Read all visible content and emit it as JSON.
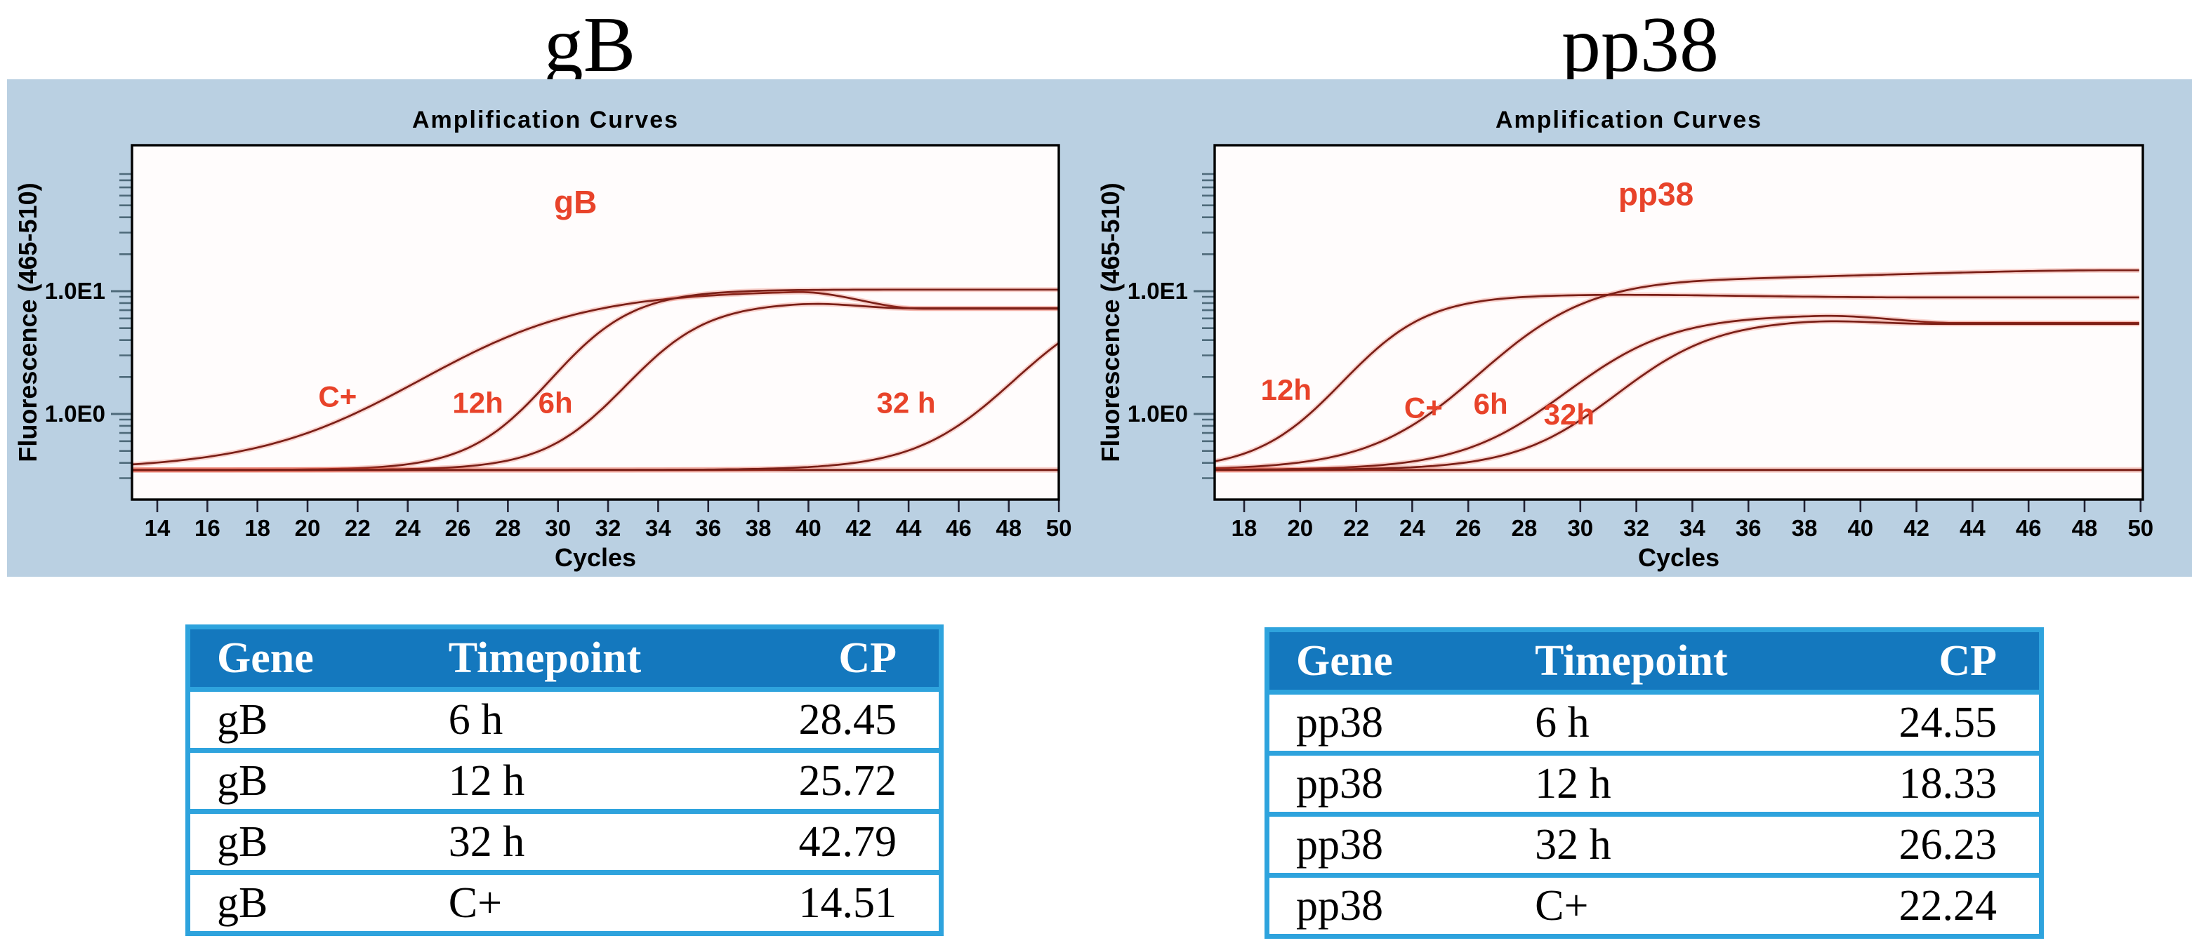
{
  "figure_titles": [
    {
      "text": "gB"
    },
    {
      "text": "pp38"
    }
  ],
  "colors": {
    "panel_bg": "#bad0e2",
    "plot_bg": "#fffcfc",
    "curve": "#7a1f17",
    "curve_glow": "rgba(228,62,40,0.22)",
    "red_label": "#e8432a",
    "axis": "#000000",
    "tick": "#4e6a7a",
    "table_header_bg": "#1478be",
    "table_border": "#2ea3dd",
    "table_header_text": "#ffffff"
  },
  "chart_data": [
    {
      "name": "gB",
      "type": "line",
      "title": "Amplification Curves",
      "xlabel": "Cycles",
      "ylabel": "Fluorescence (465-510)",
      "y_scale": "log",
      "x_ticks": [
        14,
        16,
        18,
        20,
        22,
        24,
        26,
        28,
        30,
        32,
        34,
        36,
        38,
        40,
        42,
        44,
        46,
        48,
        50
      ],
      "y_major_ticks": [
        {
          "label": "1.0E1",
          "value": 10
        },
        {
          "label": "1.0E0",
          "value": 1
        }
      ],
      "y_minor_ticks": [
        0.3,
        0.4,
        0.5,
        0.6,
        0.7,
        0.8,
        0.9,
        2,
        3,
        4,
        5,
        6,
        7,
        8,
        9,
        20,
        30,
        40,
        50,
        60,
        70,
        80,
        90
      ],
      "x_range": [
        12.99,
        50.0
      ],
      "y_range": [
        0.2,
        155
      ],
      "baseline_value": 0.35,
      "curves": [
        {
          "label": "C+",
          "cp": 14.51,
          "mid": 24.5,
          "k": 0.3,
          "plateau": 10.2,
          "settle": 7.2,
          "settle_start": 39.5,
          "settle_end": 44.5
        },
        {
          "label": "12h",
          "cp": 25.72,
          "mid": 29.7,
          "k": 0.6,
          "plateau": 10.3,
          "settle": null,
          "settle_start": null,
          "settle_end": null
        },
        {
          "label": "6h",
          "cp": 28.45,
          "mid": 32.7,
          "k": 0.6,
          "plateau": 8.2,
          "settle": 7.25,
          "settle_start": 39.5,
          "settle_end": 44.0
        },
        {
          "label": "32 h",
          "cp": 42.79,
          "mid": 48.2,
          "k": 0.5,
          "plateau": 10.0,
          "settle": null,
          "settle_start": null,
          "settle_end": null
        }
      ],
      "annotations": [
        {
          "text": "gB",
          "cycle": 30.7,
          "value": 43,
          "size": "large"
        },
        {
          "text": "C+",
          "cycle": 21.2,
          "value": 1.15,
          "size": "small"
        },
        {
          "text": "12h",
          "cycle": 26.8,
          "value": 1.02,
          "size": "small"
        },
        {
          "text": "6h",
          "cycle": 29.9,
          "value": 1.02,
          "size": "small"
        },
        {
          "text": "32 h",
          "cycle": 43.9,
          "value": 1.02,
          "size": "small"
        }
      ]
    },
    {
      "name": "pp38",
      "type": "line",
      "title": "Amplification Curves",
      "xlabel": "Cycles",
      "ylabel": "Fluorescence (465-510)",
      "y_scale": "log",
      "x_ticks": [
        18,
        20,
        22,
        24,
        26,
        28,
        30,
        32,
        34,
        36,
        38,
        40,
        42,
        44,
        46,
        48,
        50
      ],
      "y_major_ticks": [
        {
          "label": "1.0E1",
          "value": 10
        },
        {
          "label": "1.0E0",
          "value": 1
        }
      ],
      "y_minor_ticks": [
        0.3,
        0.4,
        0.5,
        0.6,
        0.7,
        0.8,
        0.9,
        2,
        3,
        4,
        5,
        6,
        7,
        8,
        9,
        20,
        30,
        40,
        50,
        60,
        70,
        80,
        90
      ],
      "x_range": [
        16.95,
        50.05
      ],
      "y_range": [
        0.2,
        155
      ],
      "baseline_value": 0.35,
      "curves": [
        {
          "label": "12h",
          "cp": 18.33,
          "mid": 21.5,
          "k": 0.65,
          "plateau": 9.4,
          "settle": 8.9,
          "settle_start": 30.0,
          "settle_end": 42.0
        },
        {
          "label": "C+",
          "cp": 22.24,
          "mid": 26.4,
          "k": 0.5,
          "plateau": 13.0,
          "settle": 14.8,
          "settle_start": 35.0,
          "settle_end": 49.0
        },
        {
          "label": "6h",
          "cp": 24.55,
          "mid": 29.5,
          "k": 0.52,
          "plateau": 6.45,
          "settle": 5.5,
          "settle_start": 38.5,
          "settle_end": 43.5
        },
        {
          "label": "32h",
          "cp": 26.23,
          "mid": 31.3,
          "k": 0.55,
          "plateau": 6.0,
          "settle": 5.42,
          "settle_start": 37.5,
          "settle_end": 42.5
        }
      ],
      "annotations": [
        {
          "text": "pp38",
          "cycle": 32.7,
          "value": 50,
          "size": "large"
        },
        {
          "text": "12h",
          "cycle": 19.5,
          "value": 1.3,
          "size": "small"
        },
        {
          "text": "C+",
          "cycle": 24.4,
          "value": 0.93,
          "size": "small"
        },
        {
          "text": "6h",
          "cycle": 26.8,
          "value": 1.0,
          "size": "small"
        },
        {
          "text": "32h",
          "cycle": 29.6,
          "value": 0.82,
          "size": "small"
        }
      ]
    }
  ],
  "tables": [
    {
      "gene": "gB",
      "headers": [
        "Gene",
        "Timepoint",
        "CP"
      ],
      "rows": [
        [
          "gB",
          "6 h",
          "28.45"
        ],
        [
          "gB",
          "12 h",
          "25.72"
        ],
        [
          "gB",
          "32 h",
          "42.79"
        ],
        [
          "gB",
          "C+",
          "14.51"
        ]
      ]
    },
    {
      "gene": "pp38",
      "headers": [
        "Gene",
        "Timepoint",
        "CP"
      ],
      "rows": [
        [
          "pp38",
          "6 h",
          "24.55"
        ],
        [
          "pp38",
          "12 h",
          "18.33"
        ],
        [
          "pp38",
          "32 h",
          "26.23"
        ],
        [
          "pp38",
          "C+",
          "22.24"
        ]
      ]
    }
  ]
}
